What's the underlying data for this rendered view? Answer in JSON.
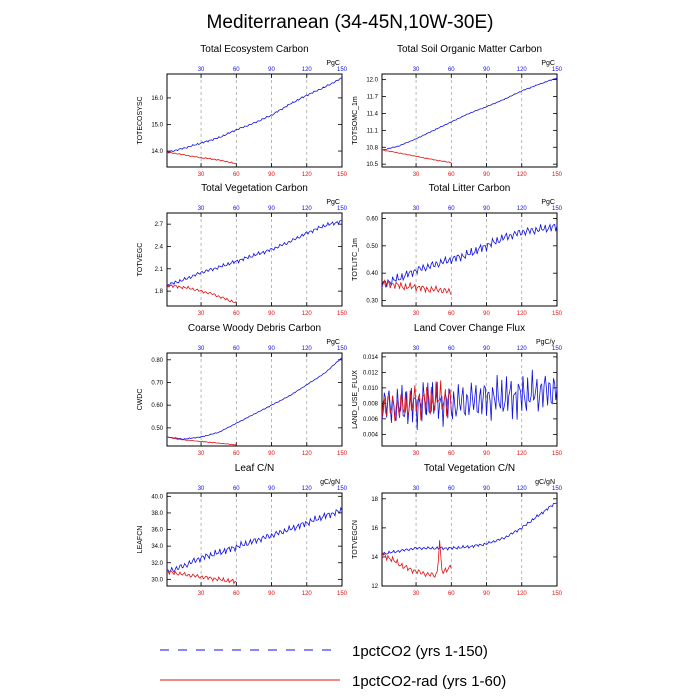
{
  "figure": {
    "title": "Mediterranean (34-45N,10W-30E)"
  },
  "colors": {
    "series_150": "#1010e0",
    "series_60": "#e01010",
    "axis": "#000000",
    "grid": "#9a9a9a"
  },
  "legend": {
    "items": [
      {
        "label": "1pctCO2 (yrs 1-150)",
        "color": "#1010e0",
        "style": "dashed"
      },
      {
        "label": "1pctCO2-rad (yrs 1-60)",
        "color": "#e01010",
        "style": "solid"
      }
    ]
  },
  "chart_data": [
    {
      "type": "line",
      "title": "Total Ecosystem Carbon",
      "ylabel": "TOTECOSYSC",
      "units": "PgC",
      "xlim": [
        1,
        150
      ],
      "ylim": [
        13.4,
        16.9
      ],
      "yticks": [
        "14.0",
        "15.0",
        "16.0"
      ],
      "ytick_values": [
        14.0,
        15.0,
        16.0
      ],
      "xticks": [
        30,
        60,
        90,
        120,
        150
      ],
      "x_top_color": "blue",
      "x_bottom_color": "red",
      "grid": "vertical dashed at 30,60,90,120",
      "series": [
        {
          "name": "1pctCO2 (yrs 1-150)",
          "x": [
            1,
            15,
            30,
            45,
            60,
            75,
            90,
            105,
            120,
            135,
            150
          ],
          "y": [
            13.95,
            14.1,
            14.3,
            14.5,
            14.8,
            15.05,
            15.35,
            15.75,
            16.1,
            16.4,
            16.75
          ]
        },
        {
          "name": "1pctCO2-rad (yrs 1-60)",
          "x": [
            1,
            10,
            20,
            30,
            40,
            50,
            60
          ],
          "y": [
            13.95,
            13.9,
            13.82,
            13.75,
            13.7,
            13.62,
            13.52
          ]
        }
      ]
    },
    {
      "type": "line",
      "title": "Total Soil Organic Matter Carbon",
      "ylabel": "TOTSOMC_1m",
      "units": "PgC",
      "xlim": [
        1,
        150
      ],
      "ylim": [
        10.45,
        12.1
      ],
      "yticks": [
        "10.5",
        "10.8",
        "11.1",
        "11.4",
        "11.7",
        "12.0"
      ],
      "ytick_values": [
        10.5,
        10.8,
        11.1,
        11.4,
        11.7,
        12.0
      ],
      "xticks": [
        30,
        60,
        90,
        120,
        150
      ],
      "x_top_color": "blue",
      "x_bottom_color": "red",
      "grid": "vertical dashed at 30,60,90,120",
      "series": [
        {
          "name": "1pctCO2 (yrs 1-150)",
          "x": [
            1,
            15,
            30,
            45,
            60,
            75,
            90,
            105,
            120,
            135,
            150
          ],
          "y": [
            10.75,
            10.82,
            10.95,
            11.1,
            11.25,
            11.4,
            11.52,
            11.65,
            11.8,
            11.92,
            12.03
          ]
        },
        {
          "name": "1pctCO2-rad (yrs 1-60)",
          "x": [
            1,
            10,
            20,
            30,
            40,
            50,
            60
          ],
          "y": [
            10.75,
            10.72,
            10.68,
            10.64,
            10.6,
            10.56,
            10.53
          ]
        }
      ]
    },
    {
      "type": "line",
      "title": "Total Vegetation Carbon",
      "ylabel": "TOTVEGC",
      "units": "PgC",
      "xlim": [
        1,
        150
      ],
      "ylim": [
        1.6,
        2.85
      ],
      "yticks": [
        "1.8",
        "2.1",
        "2.4",
        "2.7"
      ],
      "ytick_values": [
        1.8,
        2.1,
        2.4,
        2.7
      ],
      "xticks": [
        30,
        60,
        90,
        120,
        150
      ],
      "x_top_color": "blue",
      "x_bottom_color": "red",
      "grid": "vertical dashed at 30,60,90,120",
      "series": [
        {
          "name": "1pctCO2 (yrs 1-150)",
          "x": [
            1,
            15,
            30,
            45,
            60,
            75,
            90,
            105,
            120,
            135,
            150
          ],
          "y": [
            1.88,
            1.95,
            2.05,
            2.12,
            2.2,
            2.28,
            2.36,
            2.46,
            2.58,
            2.68,
            2.74
          ]
        },
        {
          "name": "1pctCO2-rad (yrs 1-60)",
          "x": [
            1,
            10,
            20,
            30,
            40,
            50,
            60
          ],
          "y": [
            1.88,
            1.86,
            1.84,
            1.8,
            1.76,
            1.7,
            1.64
          ]
        }
      ]
    },
    {
      "type": "line",
      "title": "Total Litter Carbon",
      "ylabel": "TOTLITC_1m",
      "units": "PgC",
      "xlim": [
        1,
        150
      ],
      "ylim": [
        0.28,
        0.62
      ],
      "yticks": [
        "0.30",
        "0.40",
        "0.50",
        "0.60"
      ],
      "ytick_values": [
        0.3,
        0.4,
        0.5,
        0.6
      ],
      "xticks": [
        30,
        60,
        90,
        120,
        150
      ],
      "x_top_color": "blue",
      "x_bottom_color": "red",
      "grid": "vertical dashed at 30,60,90,120",
      "series": [
        {
          "name": "1pctCO2 (yrs 1-150)",
          "x": [
            1,
            15,
            30,
            45,
            60,
            75,
            90,
            105,
            120,
            135,
            150
          ],
          "y": [
            0.36,
            0.38,
            0.41,
            0.43,
            0.45,
            0.47,
            0.5,
            0.53,
            0.55,
            0.56,
            0.57
          ]
        },
        {
          "name": "1pctCO2-rad (yrs 1-60)",
          "x": [
            1,
            10,
            20,
            30,
            40,
            50,
            60
          ],
          "y": [
            0.36,
            0.36,
            0.35,
            0.35,
            0.34,
            0.34,
            0.33
          ]
        }
      ]
    },
    {
      "type": "line",
      "title": "Coarse Woody Debris Carbon",
      "ylabel": "CWDC",
      "units": "PgC",
      "xlim": [
        1,
        150
      ],
      "ylim": [
        0.42,
        0.83
      ],
      "yticks": [
        "0.50",
        "0.60",
        "0.70",
        "0.80"
      ],
      "ytick_values": [
        0.5,
        0.6,
        0.7,
        0.8
      ],
      "xticks": [
        30,
        60,
        90,
        120,
        150
      ],
      "x_top_color": "blue",
      "x_bottom_color": "red",
      "grid": "vertical dashed at 30,60,90,120",
      "series": [
        {
          "name": "1pctCO2 (yrs 1-150)",
          "x": [
            1,
            15,
            30,
            45,
            60,
            75,
            90,
            105,
            120,
            135,
            150
          ],
          "y": [
            0.46,
            0.45,
            0.46,
            0.48,
            0.52,
            0.56,
            0.6,
            0.64,
            0.69,
            0.74,
            0.81
          ]
        },
        {
          "name": "1pctCO2-rad (yrs 1-60)",
          "x": [
            1,
            10,
            20,
            30,
            40,
            50,
            60
          ],
          "y": [
            0.46,
            0.45,
            0.445,
            0.44,
            0.435,
            0.43,
            0.425
          ]
        }
      ]
    },
    {
      "type": "line",
      "title": "Land Cover Change Flux",
      "ylabel": "LAND_USE_FLUX",
      "units": "PgC/y",
      "xlim": [
        1,
        150
      ],
      "ylim": [
        0.0025,
        0.0145
      ],
      "yticks": [
        "0.004",
        "0.006",
        "0.008",
        "0.010",
        "0.012",
        "0.014"
      ],
      "ytick_values": [
        0.004,
        0.006,
        0.008,
        0.01,
        0.012,
        0.014
      ],
      "xticks": [
        30,
        60,
        90,
        120,
        150
      ],
      "x_top_color": "blue",
      "x_bottom_color": "red",
      "grid": "vertical dashed at 30,60,90,120",
      "series": [
        {
          "name": "1pctCO2 (yrs 1-150)",
          "x": [
            1,
            15,
            30,
            45,
            60,
            75,
            90,
            105,
            120,
            135,
            150
          ],
          "y": [
            0.008,
            0.0075,
            0.0078,
            0.0082,
            0.0079,
            0.0083,
            0.0086,
            0.0087,
            0.009,
            0.0095,
            0.0098
          ]
        },
        {
          "name": "1pctCO2-rad (yrs 1-60)",
          "x": [
            1,
            10,
            20,
            30,
            40,
            50,
            60
          ],
          "y": [
            0.008,
            0.0075,
            0.0077,
            0.0082,
            0.0085,
            0.0086,
            0.0084
          ]
        }
      ]
    },
    {
      "type": "line",
      "title": "Leaf C/N",
      "ylabel": "LEAFCN",
      "units": "gC/gN",
      "xlim": [
        1,
        150
      ],
      "ylim": [
        29.2,
        40.4
      ],
      "yticks": [
        "30.0",
        "32.0",
        "34.0",
        "36.0",
        "38.0",
        "40.0"
      ],
      "ytick_values": [
        30.0,
        32.0,
        34.0,
        36.0,
        38.0,
        40.0
      ],
      "xticks": [
        30,
        60,
        90,
        120,
        150
      ],
      "x_top_color": "blue",
      "x_bottom_color": "red",
      "grid": "vertical dashed at 30,60,90,120",
      "series": [
        {
          "name": "1pctCO2 (yrs 1-150)",
          "x": [
            1,
            15,
            30,
            45,
            60,
            75,
            90,
            105,
            120,
            135,
            150
          ],
          "y": [
            30.9,
            31.6,
            32.6,
            33.2,
            33.9,
            34.6,
            35.3,
            36.0,
            36.8,
            37.6,
            38.3
          ]
        },
        {
          "name": "1pctCO2-rad (yrs 1-60)",
          "x": [
            1,
            10,
            20,
            30,
            40,
            50,
            60
          ],
          "y": [
            30.9,
            30.7,
            30.5,
            30.3,
            30.1,
            29.9,
            29.7
          ]
        }
      ]
    },
    {
      "type": "line",
      "title": "Total Vegetation C/N",
      "ylabel": "TOTVEGCN",
      "units": "gC/gN",
      "xlim": [
        1,
        150
      ],
      "ylim": [
        12.0,
        18.4
      ],
      "yticks": [
        "12",
        "14",
        "16",
        "18"
      ],
      "ytick_values": [
        12,
        14,
        16,
        18
      ],
      "xticks": [
        30,
        60,
        90,
        120,
        150
      ],
      "x_top_color": "blue",
      "x_bottom_color": "red",
      "grid": "vertical dashed at 30,60,90,120",
      "series": [
        {
          "name": "1pctCO2 (yrs 1-150)",
          "x": [
            1,
            15,
            30,
            45,
            60,
            75,
            90,
            105,
            120,
            135,
            150
          ],
          "y": [
            14.2,
            14.4,
            14.6,
            14.6,
            14.6,
            14.7,
            14.9,
            15.3,
            16.0,
            16.9,
            17.8
          ]
        },
        {
          "name": "1pctCO2-rad (yrs 1-60)",
          "x": [
            1,
            10,
            20,
            30,
            40,
            50,
            60
          ],
          "y": [
            14.2,
            13.8,
            13.3,
            13.0,
            12.8,
            12.7,
            13.4
          ]
        }
      ]
    }
  ]
}
